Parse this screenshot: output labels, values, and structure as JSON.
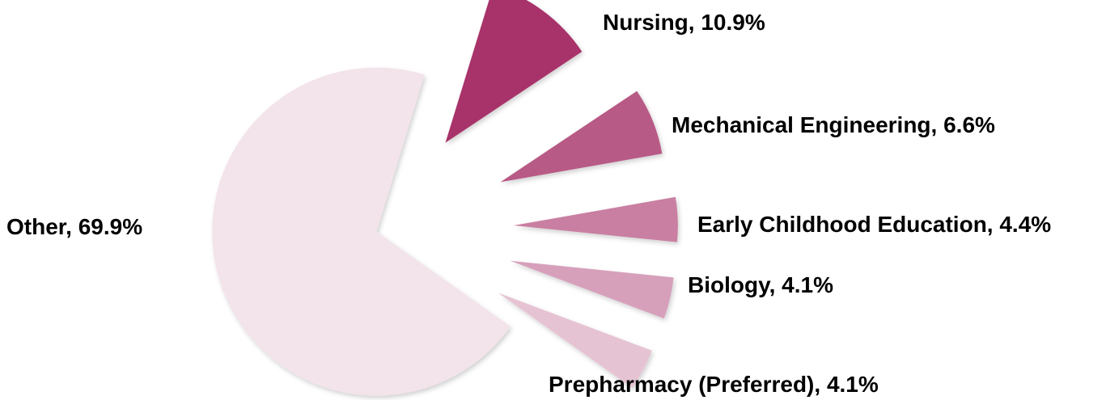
{
  "chart_data": {
    "type": "pie",
    "categories": [
      "Nursing",
      "Mechanical Engineering",
      "Early Childhood Education",
      "Biology",
      "Prepharmacy (Preferred)",
      "Other"
    ],
    "values": [
      10.9,
      6.6,
      4.4,
      4.1,
      4.1,
      69.9
    ],
    "value_labels": [
      "10.9%",
      "6.6%",
      "4.4%",
      "4.1%",
      "4.1%",
      "69.9%"
    ],
    "label_separator": ", ",
    "colors": [
      "#a8336a",
      "#b85a86",
      "#c97fa1",
      "#d6a0bb",
      "#e6c3d3",
      "#f3e3ea"
    ]
  }
}
